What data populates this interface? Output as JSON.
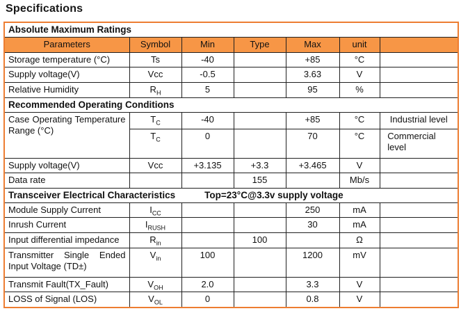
{
  "page": {
    "title": "Specifications"
  },
  "colors": {
    "border_orange": "#ED7D31",
    "header_fill": "#F79646",
    "grid_line": "#1f1f1f"
  },
  "table": {
    "header": [
      "Parameters",
      "Symbol",
      "Min",
      "Type",
      "Max",
      "unit",
      ""
    ],
    "sections": {
      "s1": {
        "title": "Absolute Maximum Ratings"
      },
      "s2": {
        "title": "Recommended Operating Conditions"
      },
      "s3": {
        "title": "Transceiver Electrical Characteristics",
        "condition": "Top=23°C@3.3v supply voltage"
      }
    },
    "rows": [
      {
        "param": "Storage temperature (°C)",
        "sym": "Ts",
        "sub": "",
        "min": "-40",
        "type": "",
        "max": "+85",
        "unit": "°C",
        "note": ""
      },
      {
        "param": "Supply voltage(V)",
        "sym": "Vcc",
        "sub": "",
        "min": "-0.5",
        "type": "",
        "max": "3.63",
        "unit": "V",
        "note": ""
      },
      {
        "param": "Relative Humidity",
        "sym": "R",
        "sub": "H",
        "min": "5",
        "type": "",
        "max": "95",
        "unit": "%",
        "note": ""
      },
      {
        "param": "Case Operating Temperature Range (°C)",
        "sym": "T",
        "sub": "C",
        "min": "-40",
        "type": "",
        "max": "+85",
        "unit": "°C",
        "note": "Industrial level"
      },
      {
        "param": "",
        "sym": "T",
        "sub": "C",
        "min": "0",
        "type": "",
        "max": "70",
        "unit": "°C",
        "note": "Commercial level"
      },
      {
        "param": "Supply voltage(V)",
        "sym": "Vcc",
        "sub": "",
        "min": "+3.135",
        "type": "+3.3",
        "max": "+3.465",
        "unit": "V",
        "note": ""
      },
      {
        "param": "Data rate",
        "sym": "",
        "sub": "",
        "min": "",
        "type": "155",
        "max": "",
        "unit": "Mb/s",
        "note": ""
      },
      {
        "param": "Module Supply Current",
        "sym": "I",
        "sub": "CC",
        "min": "",
        "type": "",
        "max": "250",
        "unit": "mA",
        "note": ""
      },
      {
        "param": "Inrush Current",
        "sym": "I",
        "sub": "RUSH",
        "min": "",
        "type": "",
        "max": "30",
        "unit": "mA",
        "note": ""
      },
      {
        "param": "Input differential impedance",
        "sym": "R",
        "sub": "in",
        "min": "",
        "type": "100",
        "max": "",
        "unit": "Ω",
        "note": ""
      },
      {
        "param": "Transmitter Single Ended Input Voltage (TD±)",
        "sym": "V",
        "sub": "in",
        "min": "100",
        "type": "",
        "max": "1200",
        "unit": "mV",
        "note": ""
      },
      {
        "param": "Transmit Fault(TX_Fault)",
        "sym": "V",
        "sub": "OH",
        "min": "2.0",
        "type": "",
        "max": "3.3",
        "unit": "V",
        "note": ""
      },
      {
        "param": "LOSS of Signal (LOS)",
        "sym": "V",
        "sub": "OL",
        "min": "0",
        "type": "",
        "max": "0.8",
        "unit": "V",
        "note": ""
      }
    ]
  }
}
